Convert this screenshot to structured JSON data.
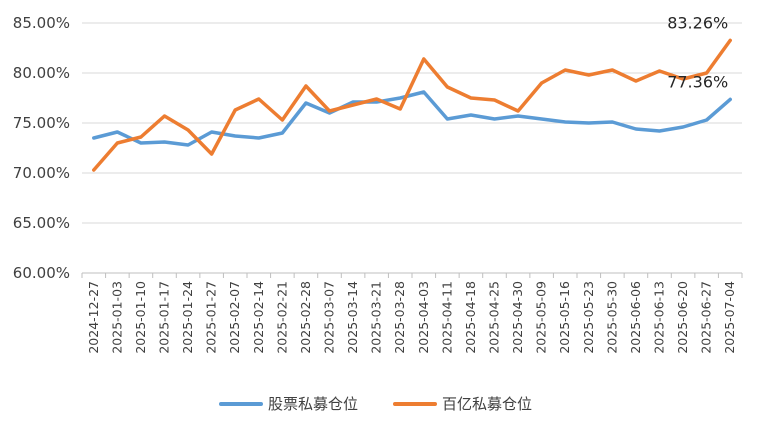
{
  "chart_data": {
    "type": "line",
    "title": "",
    "xlabel": "",
    "ylabel": "",
    "ylim": [
      60,
      85
    ],
    "yticks": [
      60,
      65,
      70,
      75,
      80,
      85
    ],
    "ytick_labels": [
      "60.00%",
      "65.00%",
      "70.00%",
      "75.00%",
      "80.00%",
      "85.00%"
    ],
    "grid": "horizontal",
    "legend_position": "bottom",
    "x": [
      "2024-12-27",
      "2025-01-03",
      "2025-01-10",
      "2025-01-17",
      "2025-01-24",
      "2025-01-27",
      "2025-02-07",
      "2025-02-14",
      "2025-02-21",
      "2025-02-28",
      "2025-03-07",
      "2025-03-14",
      "2025-03-21",
      "2025-03-28",
      "2025-04-03",
      "2025-04-11",
      "2025-04-18",
      "2025-04-25",
      "2025-04-30",
      "2025-05-09",
      "2025-05-16",
      "2025-05-23",
      "2025-05-30",
      "2025-06-06",
      "2025-06-13",
      "2025-06-20",
      "2025-06-27",
      "2025-07-04"
    ],
    "series": [
      {
        "name": "股票私募仓位",
        "color": "#5B9BD5",
        "values": [
          73.5,
          74.1,
          73.0,
          73.1,
          72.8,
          74.1,
          73.7,
          73.5,
          74.0,
          77.0,
          76.0,
          77.1,
          77.1,
          77.5,
          78.1,
          75.4,
          75.8,
          75.4,
          75.7,
          75.4,
          75.1,
          75.0,
          75.1,
          74.4,
          74.2,
          74.6,
          75.3,
          77.36
        ],
        "end_label": "77.36%"
      },
      {
        "name": "百亿私募仓位",
        "color": "#ED7D31",
        "values": [
          70.3,
          73.0,
          73.6,
          75.7,
          74.3,
          71.9,
          76.3,
          77.4,
          75.3,
          78.7,
          76.2,
          76.8,
          77.4,
          76.4,
          81.4,
          78.6,
          77.5,
          77.3,
          76.2,
          79.0,
          80.3,
          79.8,
          80.3,
          79.2,
          80.2,
          79.4,
          80.0,
          83.26
        ],
        "end_label": "83.26%"
      }
    ]
  }
}
